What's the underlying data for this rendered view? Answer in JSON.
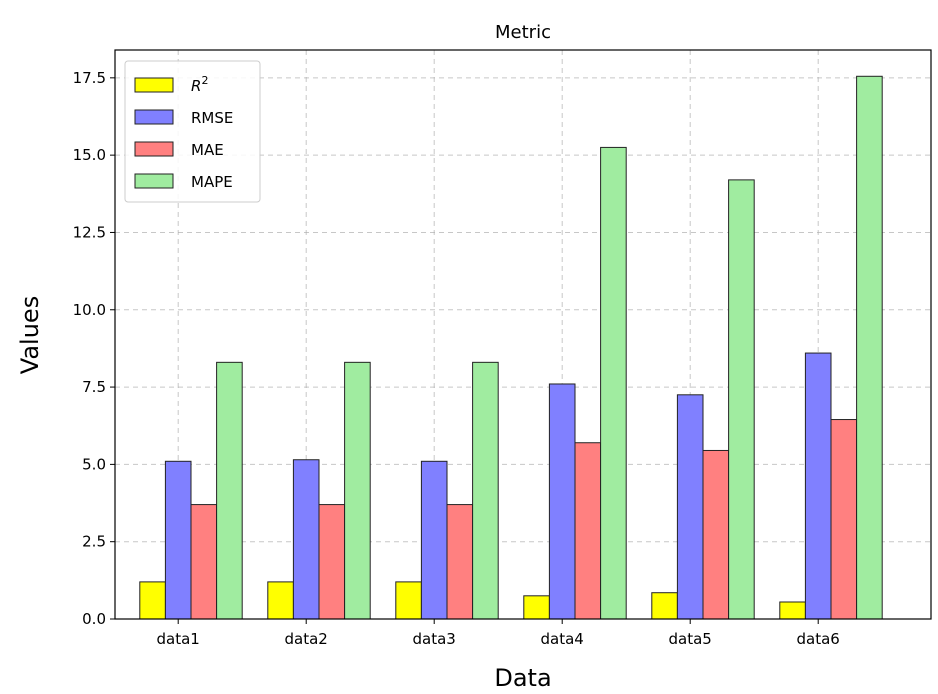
{
  "chart_data": {
    "type": "bar",
    "title": "Metric",
    "xlabel": "Data",
    "ylabel": "Values",
    "categories": [
      "data1",
      "data2",
      "data3",
      "data4",
      "data5",
      "data6"
    ],
    "ylim": [
      0,
      18.4
    ],
    "yticks": [
      0.0,
      2.5,
      5.0,
      7.5,
      10.0,
      12.5,
      15.0,
      17.5
    ],
    "ytick_labels": [
      "0.0",
      "2.5",
      "5.0",
      "7.5",
      "10.0",
      "12.5",
      "15.0",
      "17.5"
    ],
    "grid": true,
    "legend_position": "top-left",
    "series": [
      {
        "name": "R",
        "superscript": "2",
        "color": "#ffff00",
        "values": [
          1.2,
          1.2,
          1.2,
          0.75,
          0.85,
          0.55
        ]
      },
      {
        "name": "RMSE",
        "color": "#8080ff",
        "values": [
          5.1,
          5.15,
          5.1,
          7.6,
          7.25,
          8.6
        ]
      },
      {
        "name": "MAE",
        "color": "#ff8080",
        "values": [
          3.7,
          3.7,
          3.7,
          5.7,
          5.45,
          6.45
        ]
      },
      {
        "name": "MAPE",
        "color": "#a0eca0",
        "values": [
          8.3,
          8.3,
          8.3,
          15.25,
          14.2,
          17.55
        ]
      }
    ]
  }
}
